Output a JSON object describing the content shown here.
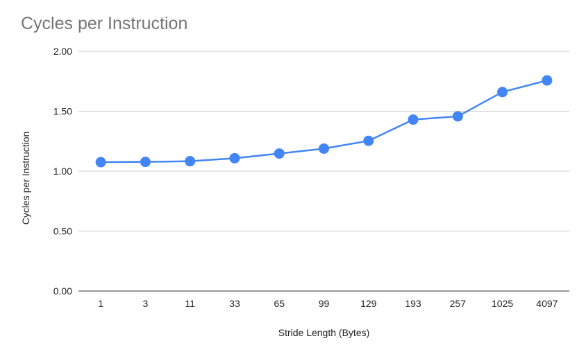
{
  "chart_data": {
    "type": "line",
    "title": "Cycles per Instruction",
    "xlabel": "Stride Length (Bytes)",
    "ylabel": "Cycles per Instruction",
    "categories": [
      "1",
      "3",
      "11",
      "33",
      "65",
      "99",
      "129",
      "193",
      "257",
      "1025",
      "4097"
    ],
    "series": [
      {
        "values": [
          1.075,
          1.077,
          1.083,
          1.108,
          1.147,
          1.188,
          1.253,
          1.43,
          1.457,
          1.66,
          1.757
        ]
      }
    ],
    "ylim": [
      0,
      2
    ],
    "yticks": [
      "0.00",
      "0.50",
      "1.00",
      "1.50",
      "2.00"
    ],
    "grid": true,
    "legend": "none",
    "colors": {
      "series": "#4285f4",
      "grid": "#cccccc",
      "axis": "#333333",
      "title": "#757575",
      "text": "#222222"
    }
  }
}
